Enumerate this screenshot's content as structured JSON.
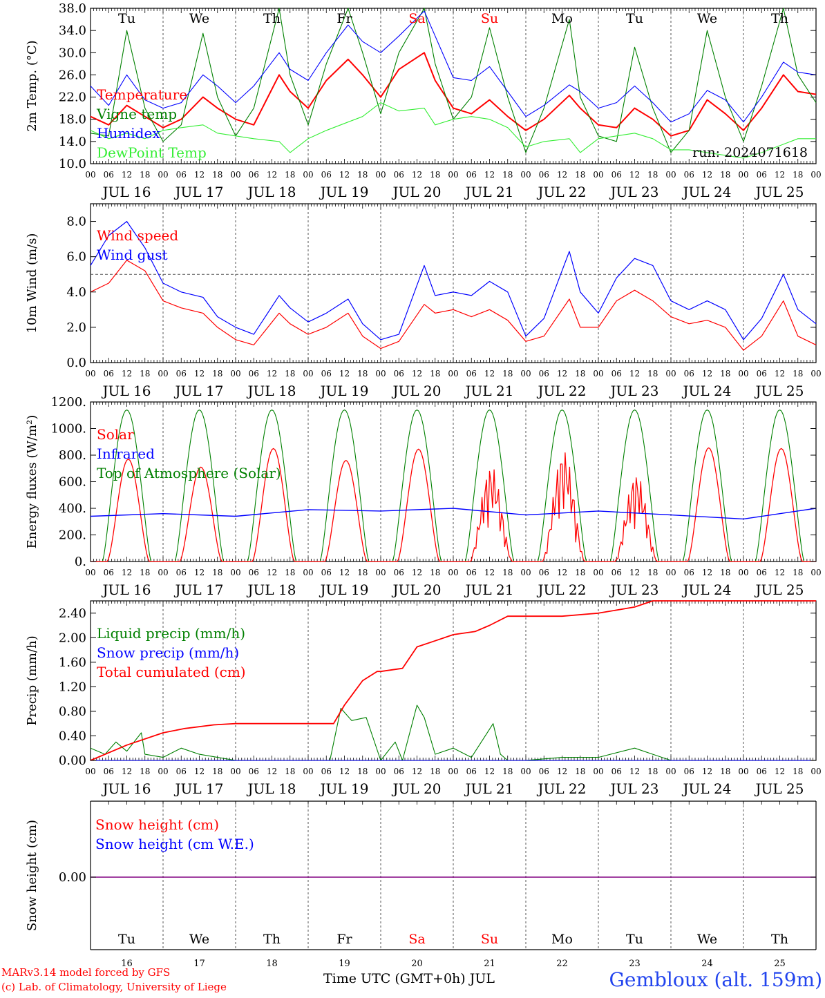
{
  "run_label": "run: 2024071618",
  "credits": [
    "MARv3.14 model forced by GFS",
    "(c) Lab. of Climatology, University of Liege"
  ],
  "station": "Gembloux (alt. 159m)",
  "time_axis_label": "Time UTC (GMT+0h) JUL",
  "hour_ticks": [
    "00",
    "06",
    "12",
    "18"
  ],
  "day_labels": [
    "JUL 16",
    "JUL 17",
    "JUL 18",
    "JUL 19",
    "JUL 20",
    "JUL 21",
    "JUL 22",
    "JUL 23",
    "JUL 24",
    "JUL 25"
  ],
  "weekdays": [
    {
      "label": "Tu",
      "color": "#000000"
    },
    {
      "label": "We",
      "color": "#000000"
    },
    {
      "label": "Th",
      "color": "#000000"
    },
    {
      "label": "Fr",
      "color": "#000000"
    },
    {
      "label": "Sa",
      "color": "#ff0000"
    },
    {
      "label": "Su",
      "color": "#ff0000"
    },
    {
      "label": "Mo",
      "color": "#000000"
    },
    {
      "label": "Tu",
      "color": "#000000"
    },
    {
      "label": "We",
      "color": "#000000"
    },
    {
      "label": "Th",
      "color": "#000000"
    }
  ],
  "bottom_day_numbers": [
    "16",
    "17",
    "18",
    "19",
    "20",
    "21",
    "22",
    "23",
    "24",
    "25"
  ],
  "colors": {
    "red": "#ff0000",
    "green": "#008000",
    "blue": "#0000ff",
    "lightgreen": "#33ee33",
    "purple": "#800080"
  },
  "chart_data": [
    {
      "id": "temperature",
      "type": "line",
      "ylabel": "2m Temp. (°C)",
      "ylim": [
        10,
        38
      ],
      "yticks": [
        "10.0",
        "14.0",
        "18.0",
        "22.0",
        "26.0",
        "30.0",
        "34.0",
        "38.0"
      ],
      "x_unit": "days since JUL 16 00 UTC",
      "grid": "dashed vertical day separators",
      "legend_placement": "left",
      "series": [
        {
          "name": "Temperature",
          "color": "#ff0000",
          "x": [
            0,
            0.25,
            0.5,
            0.75,
            1,
            1.25,
            1.55,
            1.75,
            2,
            2.25,
            2.6,
            2.75,
            3,
            3.25,
            3.55,
            3.75,
            4,
            4.25,
            4.6,
            4.75,
            5,
            5.25,
            5.5,
            5.75,
            6,
            6.25,
            6.6,
            6.75,
            7,
            7.25,
            7.5,
            7.75,
            8,
            8.25,
            8.5,
            8.75,
            9,
            9.25,
            9.55,
            9.75,
            10
          ],
          "y": [
            18.5,
            17,
            20.5,
            18.5,
            16.5,
            18,
            22,
            20,
            18,
            17,
            26,
            23,
            20,
            25,
            28.8,
            26,
            22,
            27,
            30,
            25,
            20,
            19,
            21.5,
            18.5,
            16,
            18,
            22.3,
            20,
            17,
            16.5,
            20,
            18,
            15,
            16,
            21.5,
            19,
            16,
            20,
            26,
            23,
            22.5
          ]
        },
        {
          "name": "Vigne temp",
          "color": "#008000",
          "x": [
            0,
            0.25,
            0.5,
            0.75,
            1,
            1.25,
            1.55,
            1.75,
            2,
            2.25,
            2.6,
            2.75,
            3,
            3.25,
            3.55,
            3.75,
            4,
            4.25,
            4.6,
            4.75,
            5,
            5.25,
            5.5,
            5.75,
            6,
            6.25,
            6.6,
            6.75,
            7,
            7.25,
            7.5,
            7.75,
            8,
            8.25,
            8.5,
            8.75,
            9,
            9.25,
            9.55,
            9.75,
            10
          ],
          "y": [
            15.5,
            15,
            34,
            20,
            14,
            17,
            33.5,
            22,
            15,
            20,
            38,
            26,
            17,
            28,
            38,
            30,
            19,
            30,
            38,
            28,
            18,
            22,
            34.5,
            22,
            12,
            20,
            36,
            22,
            15,
            14,
            31,
            20,
            12,
            16,
            34,
            22,
            14,
            24,
            38,
            26,
            21
          ]
        },
        {
          "name": "Humidex",
          "color": "#0000ff",
          "x": [
            0,
            0.25,
            0.5,
            0.75,
            1,
            1.25,
            1.55,
            1.75,
            2,
            2.25,
            2.6,
            2.75,
            3,
            3.25,
            3.55,
            3.75,
            4,
            4.25,
            4.6,
            4.75,
            5,
            5.25,
            5.5,
            5.75,
            6,
            6.25,
            6.6,
            6.75,
            7,
            7.25,
            7.5,
            7.75,
            8,
            8.25,
            8.5,
            8.75,
            9,
            9.25,
            9.55,
            9.75,
            10
          ],
          "y": [
            24,
            20.5,
            26,
            21.5,
            20,
            21,
            26,
            24,
            21,
            24,
            30,
            27,
            25,
            30,
            35,
            32,
            30,
            33,
            37.5,
            33,
            25.5,
            25,
            27.5,
            23,
            18.5,
            20.5,
            24.2,
            23,
            20,
            21,
            24,
            21,
            17.5,
            19,
            23.2,
            21.5,
            17.5,
            22,
            28.3,
            26.5,
            26
          ]
        },
        {
          "name": "DewPoint Temp",
          "color": "#33ee33",
          "x": [
            0,
            0.25,
            0.5,
            0.75,
            1,
            1.25,
            1.55,
            1.75,
            2,
            2.25,
            2.6,
            2.75,
            3,
            3.25,
            3.55,
            3.75,
            4,
            4.25,
            4.6,
            4.75,
            5,
            5.25,
            5.5,
            5.75,
            6,
            6.25,
            6.6,
            6.75,
            7,
            7.25,
            7.5,
            7.75,
            8,
            8.25,
            8.5,
            8.75,
            9,
            9.25,
            9.55,
            9.75,
            10
          ],
          "y": [
            16,
            14.5,
            15.5,
            14.5,
            16,
            16.5,
            17,
            15.5,
            15,
            14.5,
            14,
            12,
            14.5,
            16,
            17.5,
            18.5,
            21,
            19.5,
            20,
            17,
            18,
            18.5,
            18,
            16.5,
            13,
            14,
            14.5,
            12,
            14.5,
            15,
            15.5,
            14.5,
            12.5,
            12.5,
            12,
            11.5,
            11,
            12,
            13.5,
            14.5,
            14.5
          ]
        }
      ]
    },
    {
      "id": "wind",
      "type": "line",
      "ylabel": "10m Wind (m/s)",
      "ylim": [
        0,
        9
      ],
      "yticks": [
        "0.0",
        "2.0",
        "4.0",
        "6.0",
        "8.0"
      ],
      "reference_line": 5.0,
      "legend_placement": "left",
      "series": [
        {
          "name": "Wind speed",
          "color": "#ff0000",
          "x": [
            0,
            0.25,
            0.5,
            0.75,
            1,
            1.25,
            1.55,
            1.75,
            2,
            2.25,
            2.6,
            2.75,
            3,
            3.25,
            3.55,
            3.75,
            4,
            4.25,
            4.6,
            4.75,
            5,
            5.25,
            5.5,
            5.75,
            6,
            6.25,
            6.6,
            6.75,
            7,
            7.25,
            7.5,
            7.75,
            8,
            8.25,
            8.5,
            8.75,
            9,
            9.25,
            9.55,
            9.75,
            10
          ],
          "y": [
            4,
            4.5,
            5.8,
            5.2,
            3.5,
            3.1,
            2.8,
            2,
            1.3,
            1,
            2.8,
            2.2,
            1.6,
            2,
            2.8,
            1.5,
            0.8,
            1.2,
            3.3,
            2.8,
            3,
            2.6,
            3,
            2.4,
            1.2,
            1.5,
            3.6,
            2,
            2,
            3.5,
            4.1,
            3.5,
            2.6,
            2.2,
            2.4,
            2,
            0.7,
            1.5,
            3.5,
            1.5,
            1
          ]
        },
        {
          "name": "Wind gust",
          "color": "#0000ff",
          "x": [
            0,
            0.25,
            0.5,
            0.75,
            1,
            1.25,
            1.55,
            1.75,
            2,
            2.25,
            2.6,
            2.75,
            3,
            3.25,
            3.55,
            3.75,
            4,
            4.25,
            4.6,
            4.75,
            5,
            5.25,
            5.5,
            5.75,
            6,
            6.25,
            6.6,
            6.75,
            7,
            7.25,
            7.5,
            7.75,
            8,
            8.25,
            8.5,
            8.75,
            9,
            9.25,
            9.55,
            9.75,
            10
          ],
          "y": [
            5.5,
            7.2,
            8,
            6.5,
            4.5,
            4,
            3.7,
            2.6,
            2,
            1.6,
            3.8,
            3.1,
            2.3,
            2.8,
            3.6,
            2.2,
            1.3,
            1.6,
            5.5,
            3.8,
            4,
            3.8,
            4.6,
            4,
            1.5,
            2.5,
            6.3,
            4,
            2.8,
            4.8,
            5.9,
            5.5,
            3.5,
            3,
            3.5,
            3,
            1.3,
            2.5,
            5,
            3,
            2.2
          ]
        }
      ]
    },
    {
      "id": "energy",
      "type": "line",
      "ylabel": "Energy fluxes (W/m²)",
      "ylim": [
        0,
        1200
      ],
      "yticks": [
        "0.",
        "200.",
        "400.",
        "600.",
        "800.",
        "1000.",
        "1200."
      ],
      "legend_placement": "left",
      "series": [
        {
          "name": "Solar",
          "color": "#ff0000",
          "peaks": [
            770,
            710,
            850,
            760,
            845,
            720,
            840,
            660,
            855,
            850
          ],
          "variable_days": [
            5,
            6,
            7
          ]
        },
        {
          "name": "Infrared",
          "color": "#0000ff",
          "x": [
            0,
            1,
            2,
            3,
            4,
            5,
            6,
            7,
            8,
            9,
            10
          ],
          "y": [
            340,
            360,
            340,
            390,
            380,
            400,
            350,
            380,
            350,
            320,
            400
          ]
        },
        {
          "name": "Top of Atmosphere (Solar)",
          "color": "#008000",
          "peak": 1140
        }
      ]
    },
    {
      "id": "precip",
      "type": "line",
      "ylabel": "Precip (mm/h)",
      "ylim": [
        0,
        2.6
      ],
      "yticks": [
        "0.00",
        "0.40",
        "0.80",
        "1.20",
        "1.60",
        "2.00",
        "2.40"
      ],
      "legend_placement": "left",
      "series": [
        {
          "name": "Liquid precip (mm/h)",
          "color": "#008000",
          "x": [
            0,
            0.2,
            0.35,
            0.5,
            0.7,
            0.75,
            1,
            1.25,
            1.5,
            1.75,
            2,
            2.5,
            3,
            3.3,
            3.45,
            3.6,
            3.8,
            4,
            4.2,
            4.3,
            4.5,
            4.6,
            4.75,
            5,
            5.25,
            5.55,
            5.65,
            5.75,
            6,
            6.5,
            7,
            7.5,
            7.75,
            8,
            10
          ],
          "y": [
            0.2,
            0.1,
            0.3,
            0.15,
            0.45,
            0.1,
            0.05,
            0.2,
            0.1,
            0.05,
            0,
            0,
            0,
            0,
            0.85,
            0.65,
            0.7,
            0,
            0.3,
            0,
            0.9,
            0.7,
            0.1,
            0.2,
            0.05,
            0.6,
            0.1,
            0,
            0,
            0.05,
            0.05,
            0.2,
            0.1,
            0,
            0
          ]
        },
        {
          "name": "Snow precip (mm/h)",
          "color": "#0000ff",
          "x": [
            0,
            10
          ],
          "y": [
            0,
            0
          ]
        },
        {
          "name": "Total cumulated (cm)",
          "color": "#ff0000",
          "x": [
            0,
            0.5,
            1,
            1.3,
            1.7,
            2,
            3,
            3.35,
            3.5,
            3.75,
            3.95,
            4,
            4.3,
            4.5,
            4.75,
            5,
            5.3,
            5.5,
            5.75,
            6,
            6.5,
            7,
            7.5,
            7.75,
            10
          ],
          "y": [
            0,
            0.25,
            0.45,
            0.52,
            0.58,
            0.6,
            0.6,
            0.6,
            0.9,
            1.3,
            1.45,
            1.45,
            1.5,
            1.85,
            1.95,
            2.05,
            2.1,
            2.2,
            2.35,
            2.35,
            2.35,
            2.4,
            2.5,
            2.6,
            2.6
          ]
        }
      ]
    },
    {
      "id": "snow",
      "type": "line",
      "ylabel": "Snow height (cm)",
      "yticks": [
        "0.00"
      ],
      "legend_placement": "left",
      "series": [
        {
          "name": "Snow height (cm)",
          "color": "#ff0000",
          "x": [
            0,
            10
          ],
          "y": [
            0,
            0
          ]
        },
        {
          "name": "Snow height (cm W.E.)",
          "color": "#0000ff",
          "x": [
            0,
            10
          ],
          "y": [
            0,
            0
          ]
        }
      ]
    }
  ]
}
